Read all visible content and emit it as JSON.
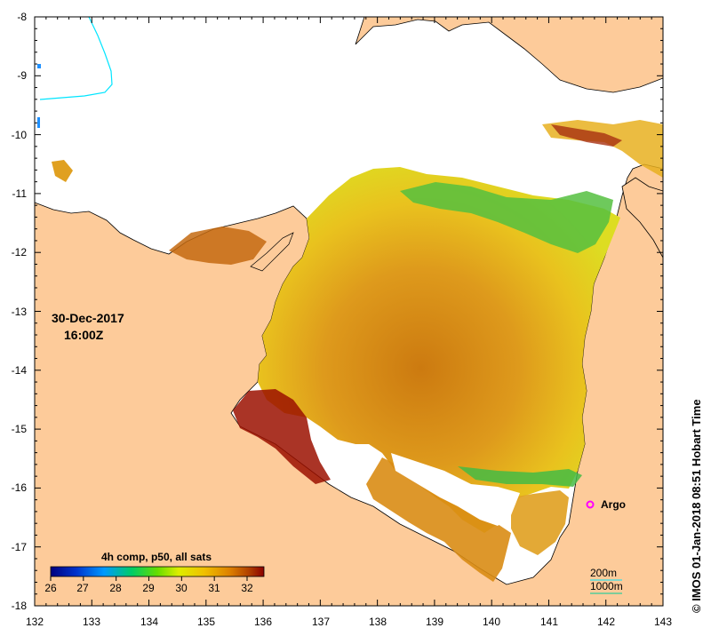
{
  "map": {
    "date": "30-Dec-2017",
    "time": "16:00Z",
    "credit": "© IMOS 01-Jan-2018 08:51 Hobart Time",
    "colorbar_title": "4h comp, p50, all sats",
    "colorbar_ticks": [
      "26",
      "27",
      "28",
      "29",
      "30",
      "31",
      "32"
    ],
    "x_ticks": [
      "132",
      "133",
      "134",
      "135",
      "136",
      "137",
      "138",
      "139",
      "140",
      "141",
      "142",
      "143"
    ],
    "y_ticks": [
      "-8",
      "-9",
      "-10",
      "-11",
      "-12",
      "-13",
      "-14",
      "-15",
      "-16",
      "-17",
      "-18"
    ],
    "argo_label": "Argo",
    "contour_labels": [
      "200m",
      "1000m"
    ],
    "colors": {
      "land": "#FDCB9A",
      "no_data": "#FFFFFF",
      "argo_marker": "#FF00FF",
      "contour_200m": "#00E5FF",
      "contour_1000m": "#00CC99"
    },
    "extent": {
      "lon_min": 132,
      "lon_max": 143,
      "lat_min": -18,
      "lat_max": -8
    }
  }
}
